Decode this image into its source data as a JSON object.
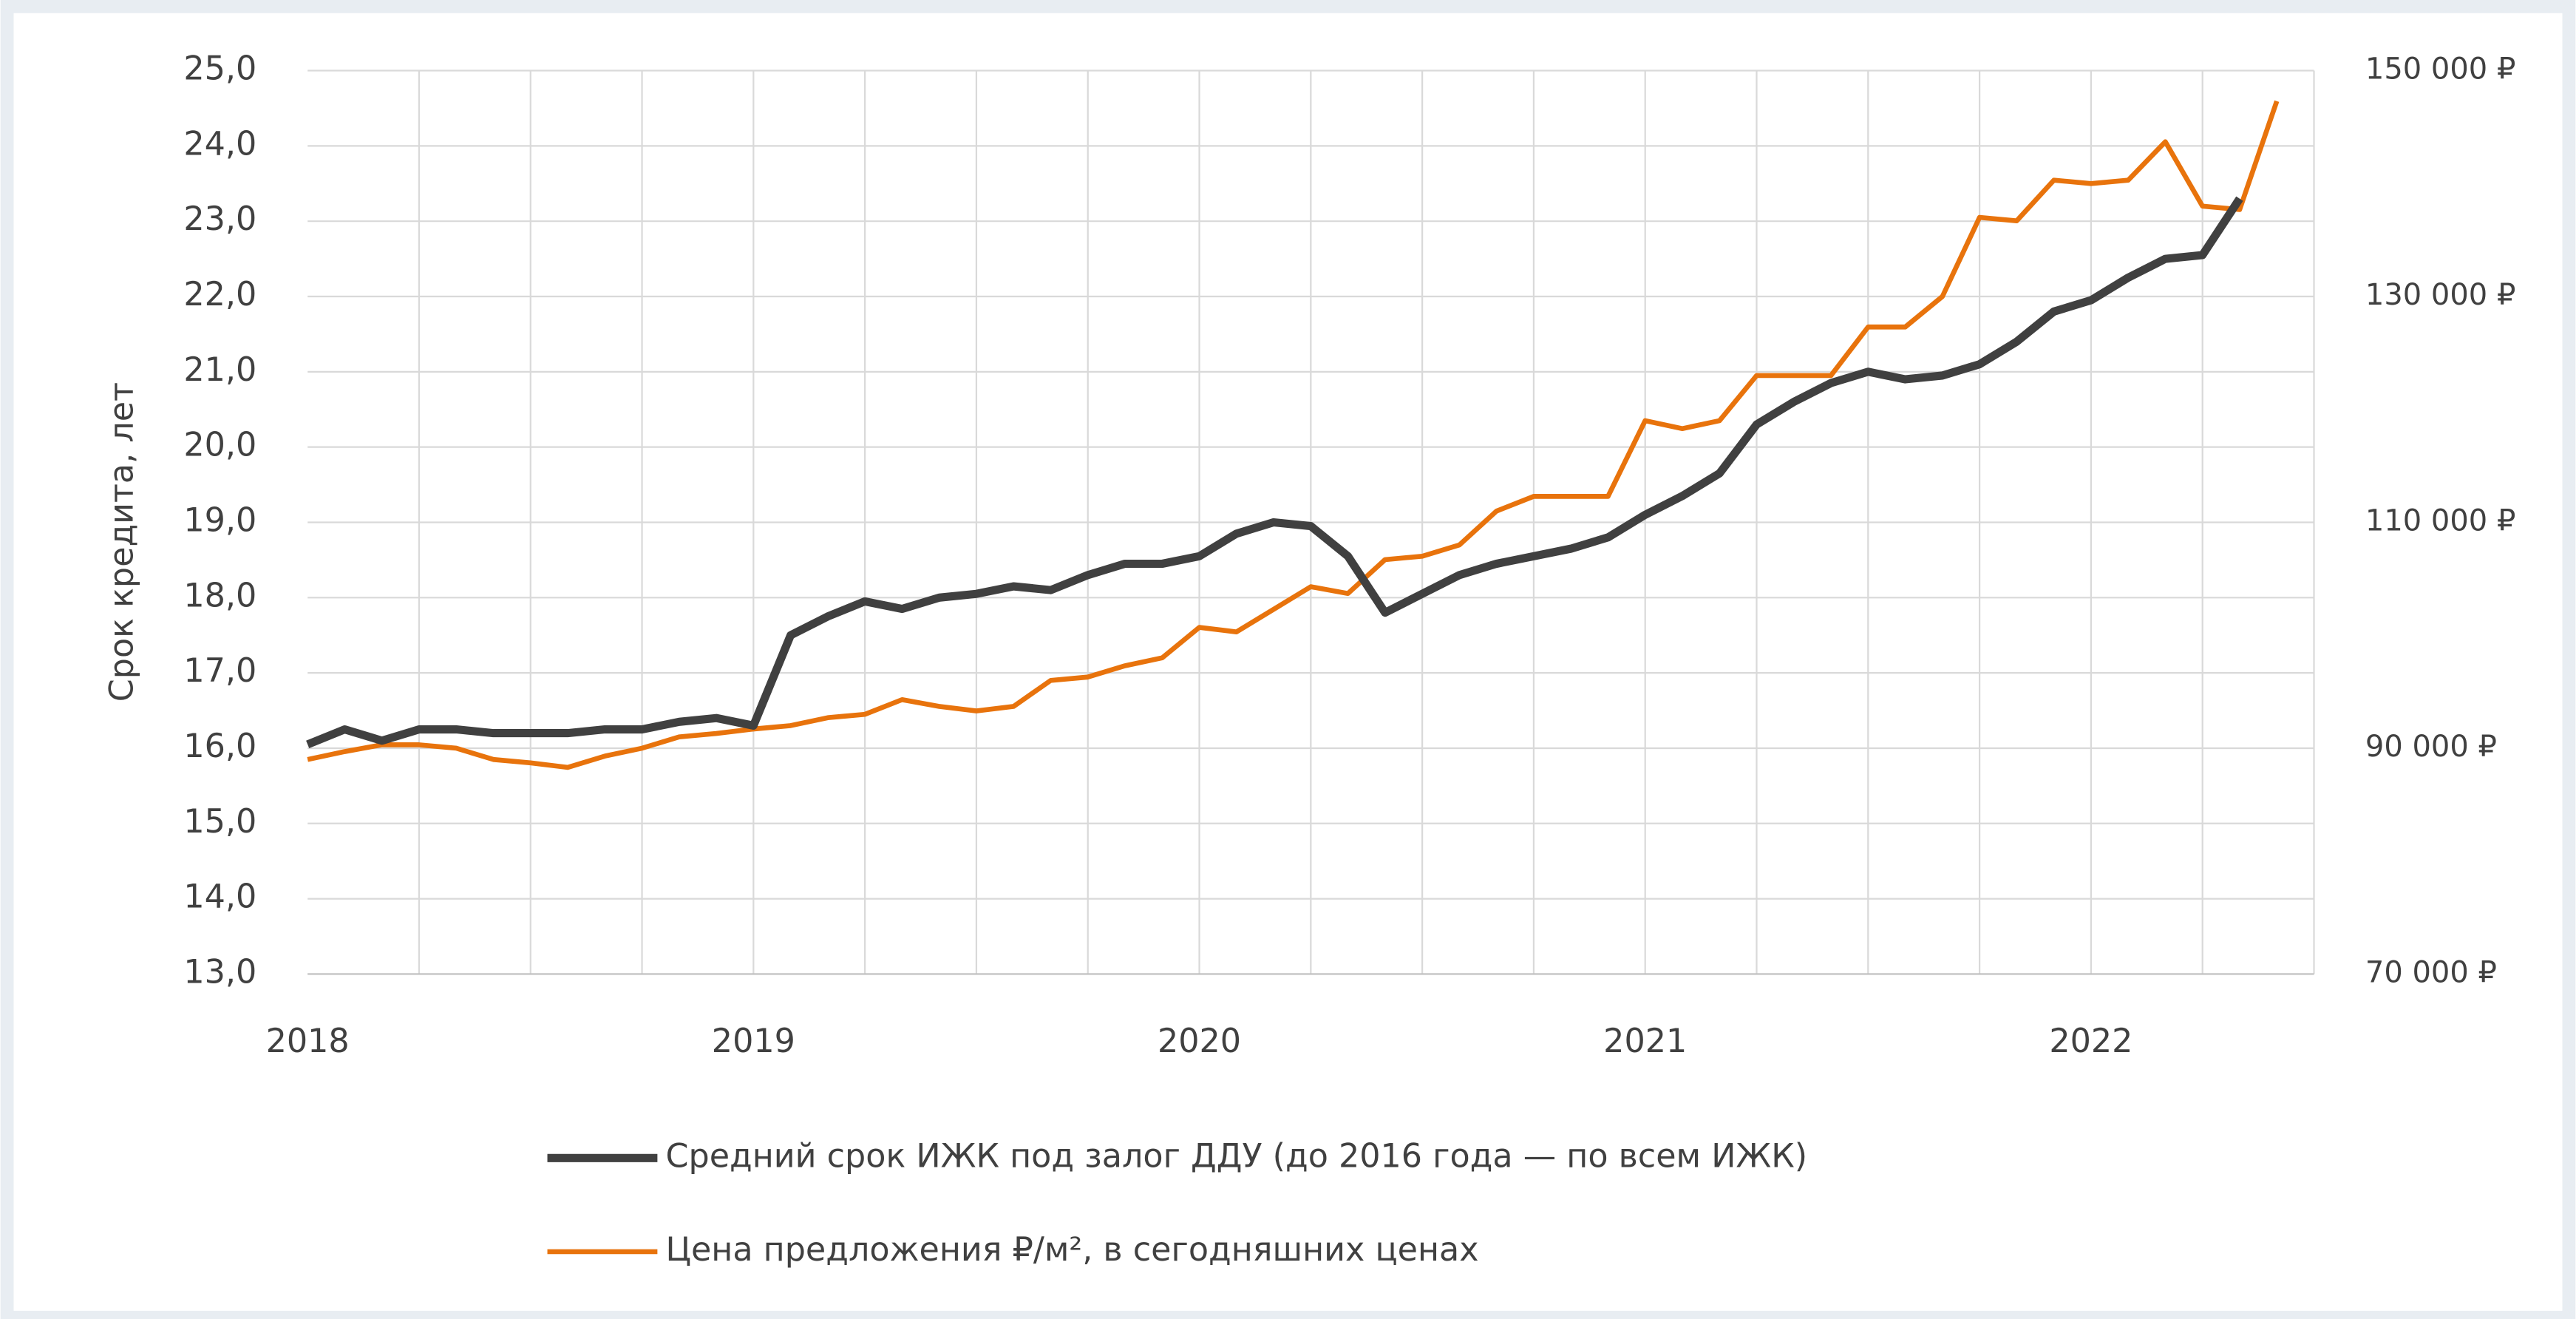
{
  "chart_data": {
    "type": "line",
    "y_label": "Срок кредита,  лет",
    "categories": [
      "2018",
      null,
      null,
      null,
      null,
      null,
      null,
      null,
      null,
      null,
      null,
      null,
      "2019",
      null,
      null,
      null,
      null,
      null,
      null,
      null,
      null,
      null,
      null,
      null,
      "2020",
      null,
      null,
      null,
      null,
      null,
      null,
      null,
      null,
      null,
      null,
      null,
      "2021",
      null,
      null,
      null,
      null,
      null,
      null,
      null,
      null,
      null,
      null,
      null,
      "2022",
      null,
      null,
      null,
      null,
      null
    ],
    "series": [
      {
        "name": "Средний срок ИЖК под залог ДДУ (до 2016 года — по всем ИЖК)",
        "color": "#404040",
        "values": [
          16.05,
          16.25,
          16.1,
          16.25,
          16.25,
          16.2,
          16.2,
          16.2,
          16.25,
          16.25,
          16.35,
          16.4,
          16.3,
          17.5,
          17.75,
          17.95,
          17.85,
          18.0,
          18.05,
          18.15,
          18.1,
          18.3,
          18.45,
          18.45,
          18.55,
          18.85,
          19.0,
          18.95,
          18.55,
          17.8,
          18.05,
          18.3,
          18.45,
          18.55,
          18.65,
          18.8,
          19.1,
          19.35,
          19.65,
          20.3,
          20.6,
          20.85,
          21.0,
          20.9,
          20.95,
          21.1,
          21.4,
          21.8,
          21.95,
          22.25,
          22.5,
          22.55,
          23.3,
          null
        ]
      },
      {
        "name": "Цена предложения ₽/м², в сегодняшних ценах",
        "color": "#e8730c",
        "axis": "y2",
        "values": [
          89000,
          89700,
          90300,
          90300,
          90000,
          89000,
          88700,
          88300,
          89300,
          90000,
          91000,
          91300,
          91700,
          92000,
          92700,
          93000,
          94300,
          93700,
          93300,
          93700,
          96000,
          96300,
          97300,
          98000,
          100700,
          100300,
          102300,
          104300,
          103700,
          106700,
          107000,
          108000,
          111000,
          112300,
          112300,
          112300,
          119000,
          118300,
          119000,
          123000,
          123000,
          123000,
          127300,
          127300,
          130000,
          137000,
          136700,
          140300,
          140000,
          140300,
          143700,
          138000,
          137700,
          147300
        ]
      }
    ],
    "ylim": [
      13,
      25
    ],
    "yticks": [
      {
        "value": 13,
        "label": "13,0"
      },
      {
        "value": 14,
        "label": "14,0"
      },
      {
        "value": 15,
        "label": "15,0"
      },
      {
        "value": 16,
        "label": "16,0"
      },
      {
        "value": 17,
        "label": "17,0"
      },
      {
        "value": 18,
        "label": "18,0"
      },
      {
        "value": 19,
        "label": "19,0"
      },
      {
        "value": 20,
        "label": "20,0"
      },
      {
        "value": 21,
        "label": "21,0"
      },
      {
        "value": 22,
        "label": "22,0"
      },
      {
        "value": 23,
        "label": "23,0"
      },
      {
        "value": 24,
        "label": "24,0"
      },
      {
        "value": 25,
        "label": "25,0"
      }
    ],
    "y2lim": [
      70000,
      150000
    ],
    "y2ticks": [
      {
        "value": 70000,
        "label": "70 000 ₽"
      },
      {
        "value": 90000,
        "label": "90 000 ₽"
      },
      {
        "value": 110000,
        "label": "110 000 ₽"
      },
      {
        "value": 130000,
        "label": "130 000 ₽"
      },
      {
        "value": 150000,
        "label": "150 000 ₽"
      }
    ],
    "grid": true,
    "legend": "bottom"
  }
}
